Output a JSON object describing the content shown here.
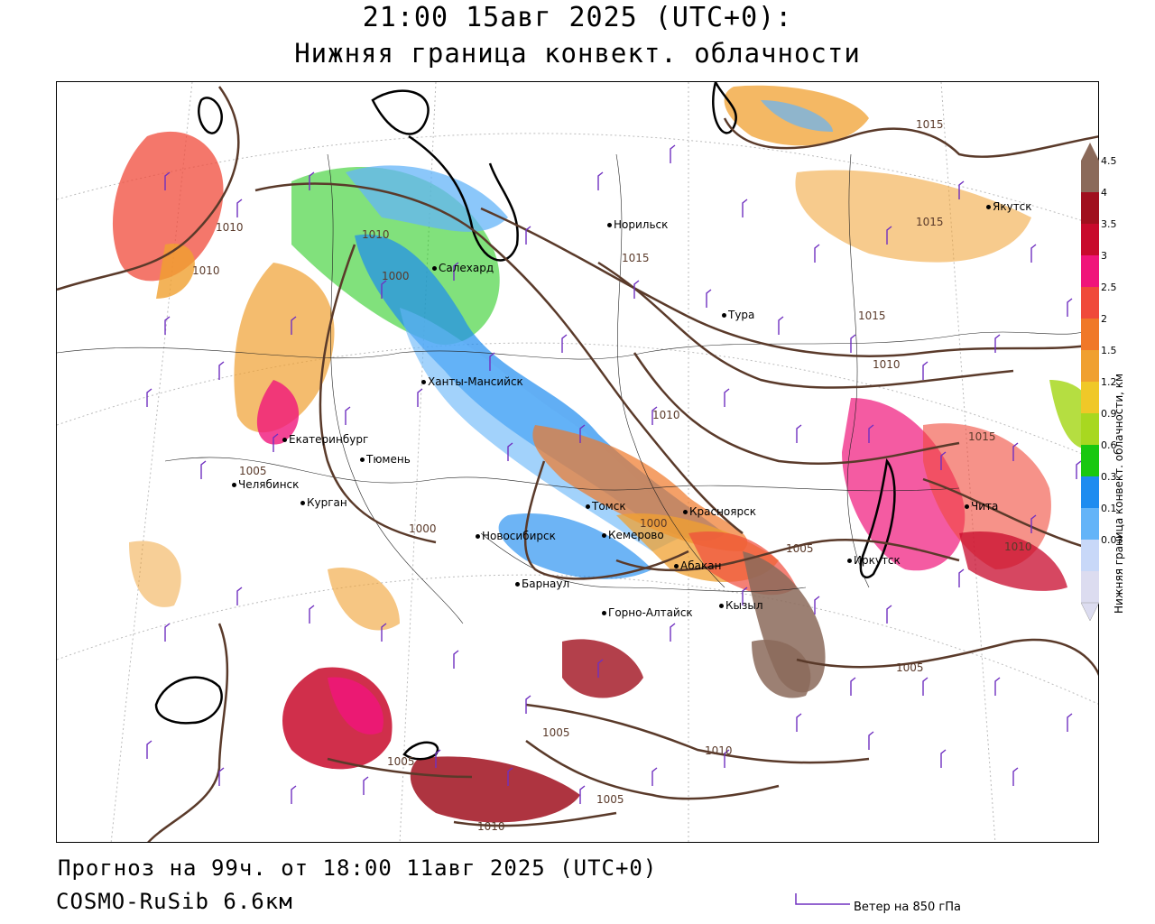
{
  "header": {
    "title_line1": "21:00 15авг 2025 (UTC+0):",
    "title_line2": "Нижняя граница конвект. облачности"
  },
  "footer": {
    "forecast": "Прогноз на 99ч. от 18:00 11авг 2025 (UTC+0)",
    "model": "COSMO-RuSib 6.6км",
    "wind_legend": "Ветер на 850 гПа"
  },
  "legend": {
    "title": "Нижняя граница конвект. облачности, км",
    "levels": [
      "4.5",
      "4",
      "3.5",
      "3",
      "2.5",
      "2",
      "1.5",
      "1.2",
      "0.9",
      "0.6",
      "0.3",
      "0.1",
      "0.03"
    ],
    "colors": [
      "#8b6a5a",
      "#a0101e",
      "#c80a2c",
      "#f0157a",
      "#f04a3a",
      "#f07828",
      "#f0a030",
      "#f0c828",
      "#a8d820",
      "#19c810",
      "#1e8cf0",
      "#64b4f8",
      "#c8d8f8",
      "#dcdcf0"
    ]
  },
  "cities": [
    {
      "name": "Норильск"
    },
    {
      "name": "Якутск"
    },
    {
      "name": "Салехард"
    },
    {
      "name": "Тура"
    },
    {
      "name": "Ханты-Мансийск"
    },
    {
      "name": "Екатеринбург"
    },
    {
      "name": "Тюмень"
    },
    {
      "name": "Челябинск"
    },
    {
      "name": "Курган"
    },
    {
      "name": "Томск"
    },
    {
      "name": "Красноярск"
    },
    {
      "name": "Новосибирск"
    },
    {
      "name": "Кемерово"
    },
    {
      "name": "Абакан"
    },
    {
      "name": "Барнаул"
    },
    {
      "name": "Горно-Алтайск"
    },
    {
      "name": "Кызыл"
    },
    {
      "name": "Иркутск"
    },
    {
      "name": "Чита"
    }
  ],
  "isobars": [
    "1015",
    "1015",
    "1015",
    "1015",
    "1010",
    "1010",
    "1010",
    "1010",
    "1005",
    "1005",
    "1005",
    "1005",
    "1005",
    "1005",
    "1000",
    "1000",
    "1000",
    "1015",
    "1010",
    "1010",
    "1010",
    "1010"
  ]
}
